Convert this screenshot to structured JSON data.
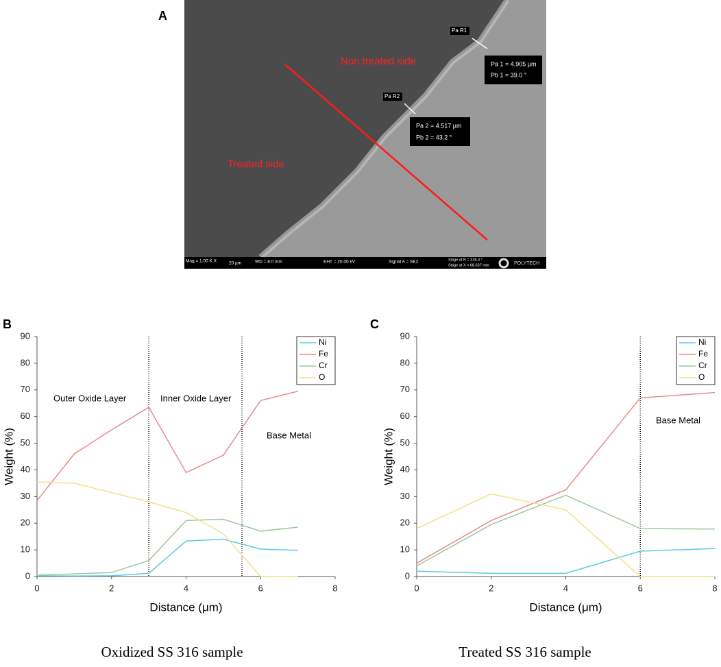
{
  "figure_labels": [
    "A",
    "B",
    "C"
  ],
  "micrograph": {
    "regions": [
      "Non treated side",
      "Treated side"
    ],
    "markers": [
      "Pa R1",
      "Pa R2"
    ],
    "measurements": [
      [
        "Pa 1 = 4.905 µm",
        "Pb 1 =  39.0 °"
      ],
      [
        "Pa 2 = 4.517 µm",
        "Pb 2 =  43.2 °"
      ]
    ],
    "info_bar": [
      "Mag =   1.00 K X",
      "20 µm",
      "WD =  8.0 mm",
      "EHT = 20.00 kV",
      "Signal A = SE2",
      "Stage at R = 328.3 °",
      "Stage at X = 68.637 mm",
      "POLYTECH"
    ]
  },
  "chart_data": [
    {
      "type": "line",
      "caption": "Oxidized SS 316 sample",
      "x_label": "Distance (μm)",
      "y_label": "Weight (%)",
      "x": [
        0,
        1,
        2,
        3,
        4,
        5,
        6,
        7
      ],
      "series": [
        {
          "name": "Ni",
          "color": "#5bc8de",
          "values": [
            0.3,
            0.2,
            0.3,
            1.2,
            13.3,
            14,
            10.3,
            9.8
          ]
        },
        {
          "name": "Fe",
          "color": "#e8898c",
          "values": [
            28.5,
            46,
            55,
            63.5,
            39,
            45.5,
            66,
            69.5
          ]
        },
        {
          "name": "Cr",
          "color": "#9dc79d",
          "values": [
            0.5,
            1,
            1.5,
            6,
            21,
            21.5,
            17,
            18.5
          ]
        },
        {
          "name": "O",
          "color": "#f2e08a",
          "values": [
            35.5,
            35,
            31.5,
            28,
            24,
            16,
            0,
            0
          ]
        }
      ],
      "vlines": [
        3,
        5.5
      ],
      "annotations": [
        "Outer Oxide Layer",
        "Inner Oxide Layer",
        "Base Metal"
      ],
      "xlim": [
        0,
        8
      ],
      "xticks": [
        0,
        2,
        4,
        6,
        8
      ],
      "ylim": [
        0,
        90
      ],
      "yticks": [
        0,
        10,
        20,
        30,
        40,
        50,
        60,
        70,
        80,
        90
      ],
      "legend": "upper right"
    },
    {
      "type": "line",
      "caption": "Treated SS 316 sample",
      "x_label": "Distance (μm)",
      "y_label": "Weight (%)",
      "x": [
        0,
        2,
        4,
        6,
        8
      ],
      "series": [
        {
          "name": "Ni",
          "color": "#5bc8de",
          "values": [
            2,
            1.2,
            1.2,
            9.5,
            10.5
          ]
        },
        {
          "name": "Fe",
          "color": "#e8898c",
          "values": [
            5,
            21,
            32.5,
            67,
            69
          ]
        },
        {
          "name": "Cr",
          "color": "#9dc79d",
          "values": [
            4,
            19.5,
            30.5,
            18,
            17.8
          ]
        },
        {
          "name": "O",
          "color": "#f2e08a",
          "values": [
            18,
            31,
            25,
            0,
            0
          ]
        }
      ],
      "vlines": [
        6
      ],
      "annotations": [
        "Base Metal"
      ],
      "xlim": [
        0,
        8
      ],
      "xticks": [
        0,
        2,
        4,
        6,
        8
      ],
      "ylim": [
        0,
        90
      ],
      "yticks": [
        0,
        10,
        20,
        30,
        40,
        50,
        60,
        70,
        80,
        90
      ],
      "legend": "upper right"
    }
  ]
}
